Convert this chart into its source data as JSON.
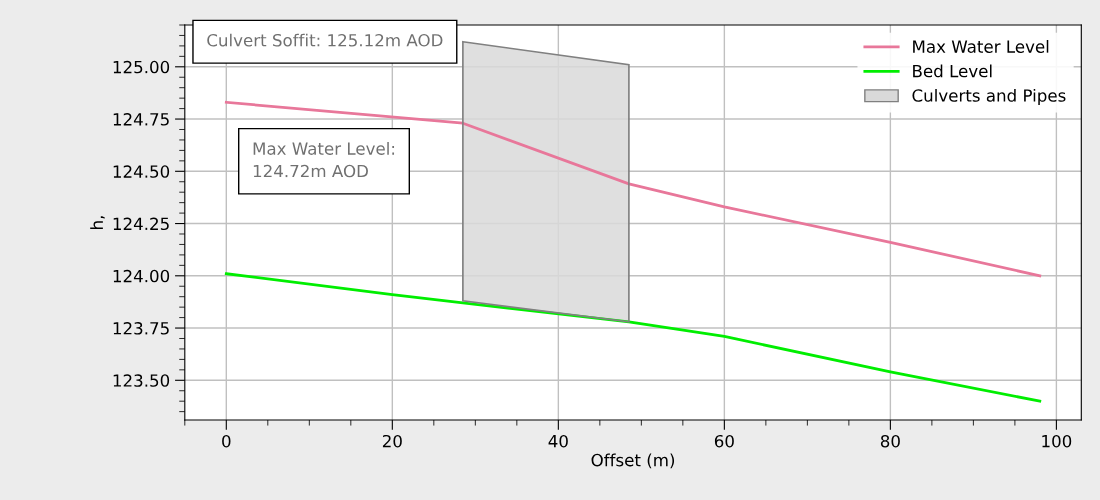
{
  "chart_data": {
    "type": "line",
    "xlabel": "Offset (m)",
    "ylabel": "h,",
    "xlim": [
      -5,
      103
    ],
    "xticks": [
      0,
      20,
      40,
      60,
      80,
      100
    ],
    "ylim": [
      123.31,
      125.2
    ],
    "yticks": [
      {
        "value": 123.5,
        "label": "123.50"
      },
      {
        "value": 123.75,
        "label": "123.75"
      },
      {
        "value": 124.0,
        "label": "124.00"
      },
      {
        "value": 124.25,
        "label": "124.25"
      },
      {
        "value": 124.5,
        "label": "124.50"
      },
      {
        "value": 124.75,
        "label": "124.75"
      },
      {
        "value": 125.0,
        "label": "125.00"
      }
    ],
    "grid": true,
    "legend": "top right",
    "series": [
      {
        "name": "Max Water Level",
        "color": "#e8779a",
        "x": [
          0,
          28.5,
          48.5,
          60,
          80,
          98
        ],
        "values": [
          124.83,
          124.73,
          124.44,
          124.33,
          124.16,
          124.0
        ]
      },
      {
        "name": "Bed Level",
        "color": "#00ee00",
        "x": [
          0,
          20,
          28.5,
          48.5,
          60,
          80,
          98
        ],
        "values": [
          124.01,
          123.91,
          123.87,
          123.78,
          123.71,
          123.54,
          123.4
        ]
      },
      {
        "name": "Culverts and Pipes",
        "type": "area",
        "color": "#d9d9d9",
        "x": [
          28.5,
          48.5,
          48.5,
          28.5
        ],
        "values": [
          125.12,
          125.01,
          123.78,
          123.88
        ]
      }
    ],
    "annotations": [
      {
        "text": "Culvert Soffit: 125.12m AOD",
        "x": 28.5,
        "y": 125.12
      },
      "Max Water Level:\n124.72m AOD"
    ]
  }
}
